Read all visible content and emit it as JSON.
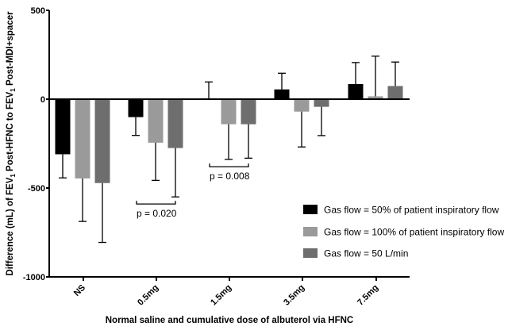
{
  "chart_data": {
    "type": "bar",
    "title": "",
    "xlabel": "Normal saline and cumulative dose of albuterol via HFNC",
    "ylabel_parts": [
      "Difference (mL) of FEV",
      "1",
      " Post-HFNC to FEV",
      "1",
      " Post-MDI+spacer"
    ],
    "ylim": [
      -1000,
      500
    ],
    "yticks": [
      "-1000",
      "-500",
      "0",
      "500"
    ],
    "ytick_values": [
      -1000,
      -500,
      0,
      500
    ],
    "categories": [
      "NS",
      "0.5mg",
      "1.5mg",
      "3.5mg",
      "7.5mg"
    ],
    "series": [
      {
        "name": "Gas flow = 50% of patient inspiratory flow",
        "color": "#000000",
        "values": [
          -310,
          -101,
          5,
          55,
          85
        ],
        "error": [
          133,
          103,
          92,
          91,
          121
        ]
      },
      {
        "name": "Gas flow = 100% of patient inspiratory flow",
        "color": "#9a9a9a",
        "values": [
          -446,
          -245,
          -141,
          -70,
          16
        ],
        "error": [
          242,
          212,
          198,
          199,
          226
        ]
      },
      {
        "name": "Gas flow = 50 L/min",
        "color": "#6e6e6e",
        "values": [
          -472,
          -275,
          -141,
          -43,
          74
        ],
        "error": [
          334,
          275,
          191,
          162,
          135
        ]
      }
    ],
    "annotations": [
      {
        "text": "p = 0.020",
        "category": "0.5mg",
        "series_from": 1,
        "series_to": 2,
        "y": -590
      },
      {
        "text": "p = 0.008",
        "category": "1.5mg",
        "series_from": 1,
        "series_to": 2,
        "y": -380
      }
    ],
    "legend_position": "bottom-right",
    "grid": false
  }
}
